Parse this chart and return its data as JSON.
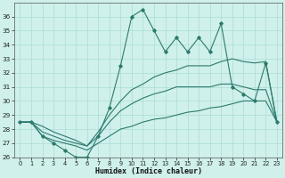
{
  "x": [
    0,
    1,
    2,
    3,
    4,
    5,
    6,
    7,
    8,
    9,
    10,
    11,
    12,
    13,
    14,
    15,
    16,
    17,
    18,
    19,
    20,
    21,
    22,
    23
  ],
  "y_main": [
    28.5,
    28.5,
    27.5,
    27.0,
    26.5,
    26.0,
    26.0,
    27.5,
    29.5,
    32.5,
    36.0,
    36.5,
    35.0,
    33.5,
    34.5,
    33.5,
    34.5,
    33.5,
    35.5,
    31.0,
    30.5,
    30.0,
    32.7,
    28.5
  ],
  "y_upper": [
    28.5,
    28.5,
    28.2,
    27.8,
    27.5,
    27.2,
    26.8,
    27.8,
    29.0,
    30.0,
    30.8,
    31.2,
    31.7,
    32.0,
    32.2,
    32.5,
    32.5,
    32.5,
    32.8,
    33.0,
    32.8,
    32.7,
    32.8,
    28.5
  ],
  "y_mid": [
    28.5,
    28.5,
    27.8,
    27.5,
    27.2,
    27.0,
    26.8,
    27.5,
    28.5,
    29.3,
    29.8,
    30.2,
    30.5,
    30.7,
    31.0,
    31.0,
    31.0,
    31.0,
    31.2,
    31.2,
    31.0,
    30.8,
    30.8,
    28.5
  ],
  "y_lower": [
    28.5,
    28.5,
    27.5,
    27.2,
    27.0,
    26.8,
    26.5,
    27.0,
    27.5,
    28.0,
    28.2,
    28.5,
    28.7,
    28.8,
    29.0,
    29.2,
    29.3,
    29.5,
    29.6,
    29.8,
    30.0,
    30.0,
    30.0,
    28.5
  ],
  "color": "#2d7a6e",
  "bg_color": "#cff0eb",
  "grid_color": "#aaddd6",
  "ylim": [
    26,
    37
  ],
  "xlim": [
    -0.5,
    23.5
  ],
  "yticks": [
    26,
    27,
    28,
    29,
    30,
    31,
    32,
    33,
    34,
    35,
    36
  ],
  "xticks": [
    0,
    1,
    2,
    3,
    4,
    5,
    6,
    7,
    8,
    9,
    10,
    11,
    12,
    13,
    14,
    15,
    16,
    17,
    18,
    19,
    20,
    21,
    22,
    23
  ],
  "xlabel": "Humidex (Indice chaleur)"
}
